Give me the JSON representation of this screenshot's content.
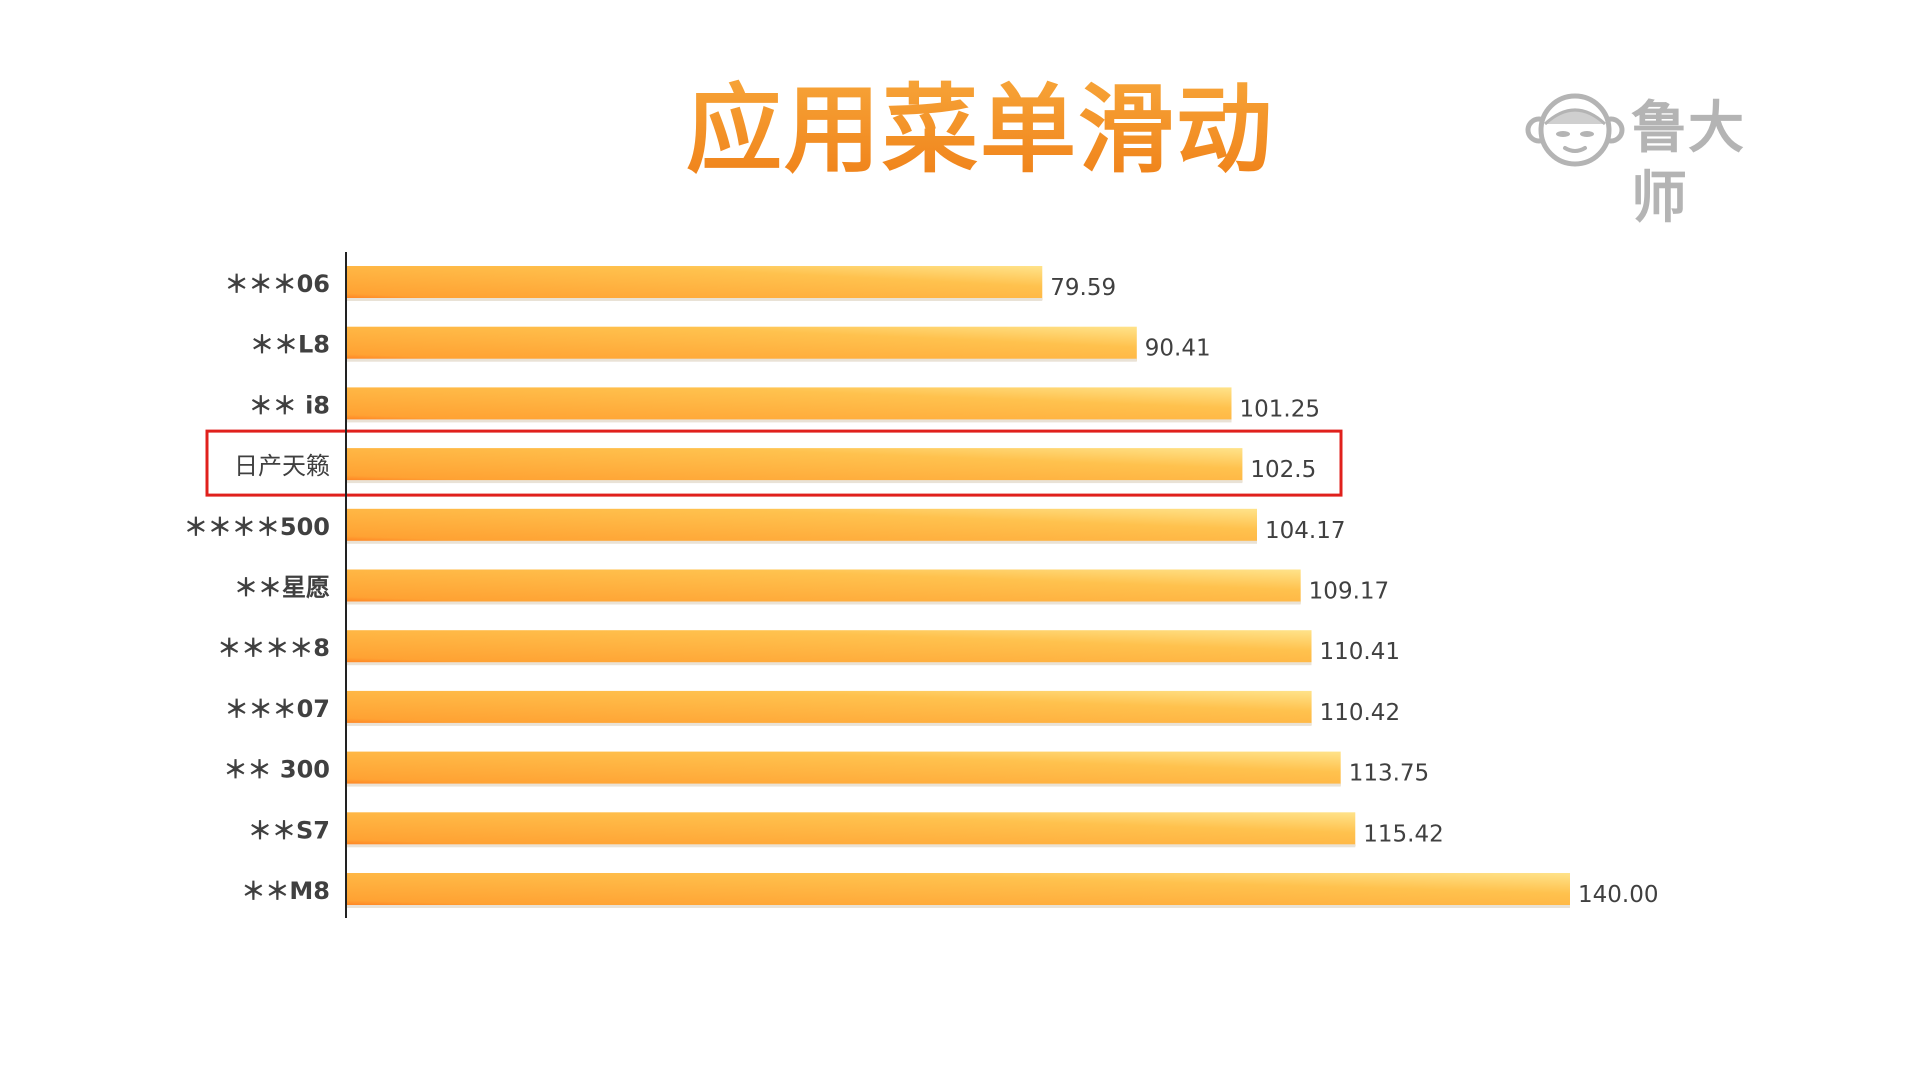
{
  "title": "应用菜单滑动",
  "logo": {
    "text": "鲁大师",
    "mark_icon": "monkey-face-icon"
  },
  "colors": {
    "title": "#f08a1c",
    "bar_start": "#ff7a1e",
    "bar_mid": "#ffb33d",
    "bar_end": "#ffe38a",
    "highlight_box": "#e0201c",
    "axis": "#222222",
    "label": "#404040",
    "logo": "#b4b4b4"
  },
  "chart_data": {
    "type": "bar",
    "orientation": "horizontal",
    "title": "",
    "xlabel": "",
    "ylabel": "",
    "xlim": [
      0,
      140
    ],
    "grid": false,
    "categories": [
      "＊＊＊06",
      "＊＊L8",
      "＊＊ i8",
      "日产天籁",
      "＊＊＊＊500",
      "＊＊星愿",
      "＊＊＊＊8",
      "＊＊＊07",
      "＊＊ 300",
      "＊＊S7",
      "＊＊M8"
    ],
    "values": [
      79.59,
      90.41,
      101.25,
      102.5,
      104.17,
      109.17,
      110.41,
      110.42,
      113.75,
      115.42,
      140.0
    ],
    "value_labels": [
      "79.59",
      "90.41",
      "101.25",
      "102.5",
      "104.17",
      "109.17",
      "110.41",
      "110.42",
      "113.75",
      "115.42",
      "140.00"
    ],
    "highlighted_category": "日产天籁"
  }
}
